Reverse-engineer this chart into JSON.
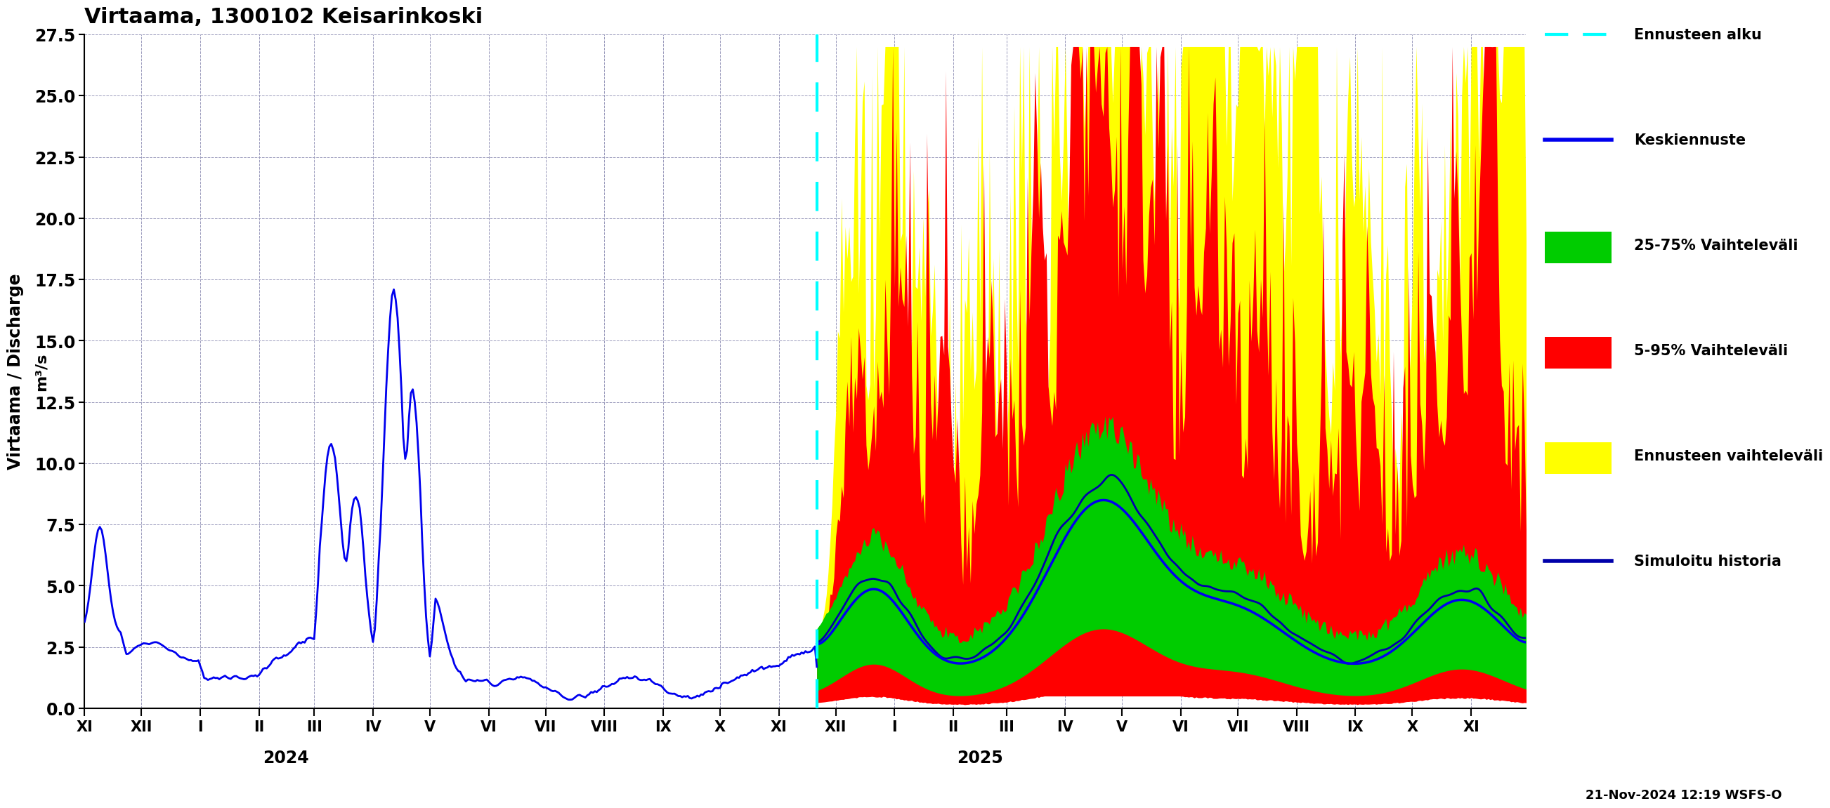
{
  "title": "Virtaama, 1300102 Keisarinkoski",
  "ylabel1": "Virtaama / Discharge",
  "ylabel2": "m³/s",
  "ylim": [
    0.0,
    27.5
  ],
  "yticks": [
    0.0,
    2.5,
    5.0,
    7.5,
    10.0,
    12.5,
    15.0,
    17.5,
    20.0,
    22.5,
    25.0,
    27.5
  ],
  "date_label_bottom": "21-Nov-2024 12:19 WSFS-O",
  "year_2024_label": "2024",
  "year_2025_label": "2025",
  "legend_labels": [
    "Ennusteen alku",
    "Keskiennuste",
    "25-75% Vaihteleväli",
    "5-95% Vaihteleväli",
    "Ennusteen vaihteleväli",
    "Simuloitu historia"
  ],
  "color_cyan": "#00FFFF",
  "color_blue_forecast": "#0000EE",
  "color_blue_history": "#0000EE",
  "color_sim_hist": "#0000AA",
  "color_green": "#00CC00",
  "color_red": "#FF0000",
  "color_yellow": "#FFFF00",
  "background": "#FFFFFF",
  "grid_color": "#9999BB"
}
